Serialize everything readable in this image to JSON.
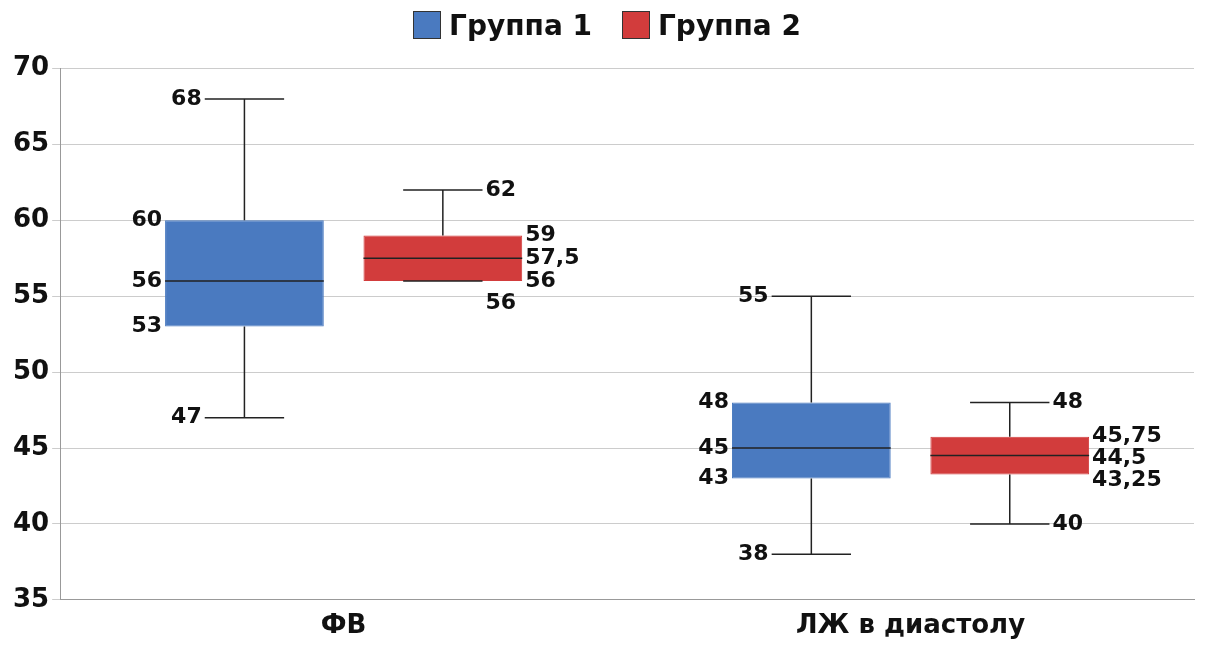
{
  "chart_data": {
    "type": "box",
    "categories": [
      "ФВ",
      "ЛЖ в диастолу"
    ],
    "series": [
      {
        "name": "Группа 1",
        "color": "#4a7ac0",
        "boxes": [
          {
            "low": 47,
            "q1": 53,
            "median": 56,
            "q3": 60,
            "high": 68
          },
          {
            "low": 38,
            "q1": 43,
            "median": 45,
            "q3": 48,
            "high": 55
          }
        ]
      },
      {
        "name": "Группа 2",
        "color": "#d23c3c",
        "boxes": [
          {
            "low": 56,
            "q1": 56,
            "median": 57.5,
            "q3": 59,
            "high": 62
          },
          {
            "low": 40,
            "q1": 43.25,
            "median": 44.5,
            "q3": 45.75,
            "high": 48
          }
        ]
      }
    ],
    "annotations": [
      "68",
      "60",
      "56",
      "53",
      "47",
      "55",
      "48",
      "45",
      "43",
      "38",
      "62",
      "59",
      "57,5",
      "56",
      "56",
      "48",
      "45,75",
      "44,5",
      "43,25",
      "40"
    ],
    "ylim": [
      35,
      70
    ],
    "yticks": [
      35,
      40,
      45,
      50,
      55,
      60,
      65,
      70
    ],
    "grid": "y",
    "legend": "top"
  }
}
